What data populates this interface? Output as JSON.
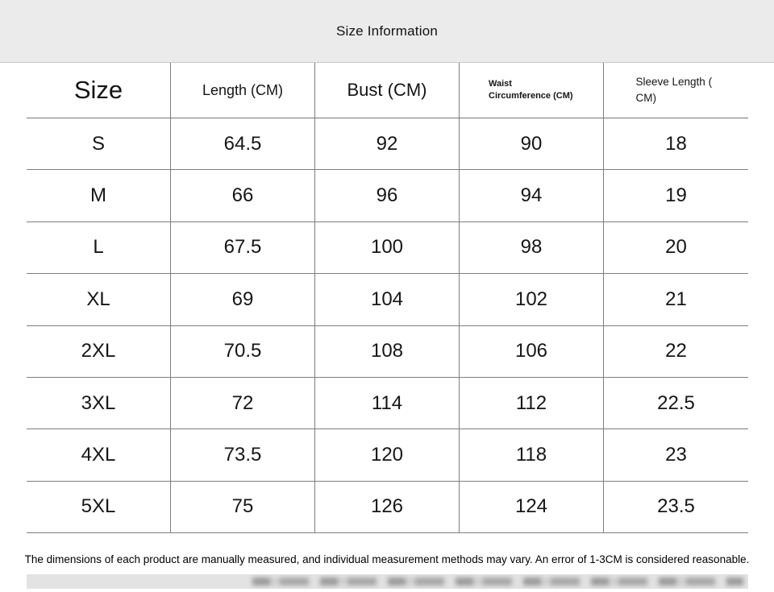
{
  "page": {
    "title": "Size Information",
    "footnote": "The dimensions of each product are manually measured, and individual measurement methods may vary. An error of 1-3CM is considered reasonable."
  },
  "table": {
    "columns": [
      {
        "key": "size",
        "label": "Size"
      },
      {
        "key": "length",
        "label": "Length (CM)"
      },
      {
        "key": "bust",
        "label": "Bust (CM)"
      },
      {
        "key": "waist",
        "label": "Waist Circumference (CM)"
      },
      {
        "key": "sleeve",
        "label": "Sleeve Length ( CM)"
      }
    ],
    "rows": [
      {
        "size": "S",
        "length": "64.5",
        "bust": "92",
        "waist": "90",
        "sleeve": "18"
      },
      {
        "size": "M",
        "length": "66",
        "bust": "96",
        "waist": "94",
        "sleeve": "19"
      },
      {
        "size": "L",
        "length": "67.5",
        "bust": "100",
        "waist": "98",
        "sleeve": "20"
      },
      {
        "size": "XL",
        "length": "69",
        "bust": "104",
        "waist": "102",
        "sleeve": "21"
      },
      {
        "size": "2XL",
        "length": "70.5",
        "bust": "108",
        "waist": "106",
        "sleeve": "22"
      },
      {
        "size": "3XL",
        "length": "72",
        "bust": "114",
        "waist": "112",
        "sleeve": "22.5"
      },
      {
        "size": "4XL",
        "length": "73.5",
        "bust": "120",
        "waist": "118",
        "sleeve": "23"
      },
      {
        "size": "5XL",
        "length": "75",
        "bust": "126",
        "waist": "124",
        "sleeve": "23.5"
      }
    ]
  },
  "colors": {
    "band_background": "#ebebeb",
    "table_line": "#7e7e7e",
    "text": "#141414"
  }
}
